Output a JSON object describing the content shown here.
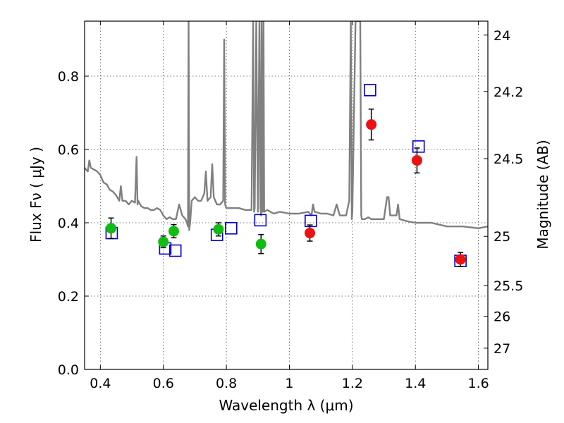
{
  "chart_data": {
    "type": "scatter",
    "title": "",
    "xlabel": "Wavelength  λ (μm)",
    "ylabel": "Flux  Fν  ( μJy )",
    "y2label": "Magnitude (AB)",
    "xlim": [
      0.35,
      1.63
    ],
    "ylim": [
      0.0,
      0.95
    ],
    "xticks": [
      0.4,
      0.6,
      0.8,
      1.0,
      1.2,
      1.4,
      1.6
    ],
    "xtick_labels": [
      "0.4",
      "0.6",
      "0.8",
      "1",
      "1.2",
      "1.4",
      "1.6"
    ],
    "yticks": [
      0.0,
      0.2,
      0.4,
      0.6,
      0.8
    ],
    "ytick_labels": [
      "0.0",
      "0.2",
      "0.4",
      "0.6",
      "0.8"
    ],
    "y2_ticks": [
      {
        "label": "24",
        "flux": 0.912
      },
      {
        "label": "24.2",
        "flux": 0.758
      },
      {
        "label": "24.5",
        "flux": 0.575
      },
      {
        "label": "25",
        "flux": 0.363
      },
      {
        "label": "25.5",
        "flux": 0.229
      },
      {
        "label": "26",
        "flux": 0.145
      },
      {
        "label": "27",
        "flux": 0.058
      }
    ],
    "grid": true,
    "series": [
      {
        "style": "line",
        "color": "#808080",
        "x": [
          0.35,
          0.36,
          0.365,
          0.37,
          0.38,
          0.39,
          0.4,
          0.41,
          0.42,
          0.43,
          0.44,
          0.45,
          0.46,
          0.465,
          0.47,
          0.48,
          0.49,
          0.5,
          0.51,
          0.515,
          0.518,
          0.52,
          0.53,
          0.54,
          0.55,
          0.56,
          0.57,
          0.58,
          0.59,
          0.6,
          0.61,
          0.62,
          0.63,
          0.64,
          0.65,
          0.66,
          0.67,
          0.675,
          0.678,
          0.68,
          0.682,
          0.685,
          0.69,
          0.7,
          0.71,
          0.72,
          0.73,
          0.735,
          0.74,
          0.75,
          0.755,
          0.76,
          0.77,
          0.78,
          0.79,
          0.793,
          0.796,
          0.8,
          0.82,
          0.84,
          0.86,
          0.88,
          0.885,
          0.888,
          0.89,
          0.895,
          0.9,
          0.905,
          0.908,
          0.91,
          0.912,
          0.915,
          0.918,
          0.92,
          0.93,
          0.95,
          0.97,
          1.0,
          1.03,
          1.06,
          1.07,
          1.075,
          1.08,
          1.1,
          1.12,
          1.14,
          1.15,
          1.16,
          1.18,
          1.19,
          1.195,
          1.198,
          1.2,
          1.21,
          1.22,
          1.225,
          1.228,
          1.23,
          1.24,
          1.25,
          1.26,
          1.28,
          1.3,
          1.31,
          1.315,
          1.32,
          1.33,
          1.34,
          1.345,
          1.35,
          1.37,
          1.4,
          1.45,
          1.5,
          1.55,
          1.6,
          1.63
        ],
        "y": [
          0.55,
          0.54,
          0.57,
          0.55,
          0.545,
          0.54,
          0.53,
          0.51,
          0.505,
          0.49,
          0.485,
          0.475,
          0.46,
          0.5,
          0.46,
          0.46,
          0.45,
          0.46,
          0.455,
          0.58,
          0.45,
          0.46,
          0.445,
          0.44,
          0.44,
          0.435,
          0.435,
          0.44,
          0.435,
          0.42,
          0.41,
          0.415,
          0.41,
          0.41,
          0.45,
          0.42,
          0.41,
          0.4,
          0.39,
          0.95,
          0.38,
          0.4,
          0.46,
          0.47,
          0.46,
          0.46,
          0.48,
          0.54,
          0.46,
          0.47,
          0.56,
          0.47,
          0.45,
          0.45,
          0.46,
          0.9,
          0.45,
          0.44,
          0.44,
          0.44,
          0.435,
          0.435,
          0.95,
          0.43,
          0.44,
          0.95,
          0.43,
          0.95,
          0.44,
          0.42,
          0.95,
          0.43,
          0.95,
          0.43,
          0.435,
          0.425,
          0.43,
          0.425,
          0.425,
          0.43,
          0.42,
          0.45,
          0.43,
          0.425,
          0.425,
          0.42,
          0.45,
          0.42,
          0.42,
          0.46,
          0.95,
          0.41,
          0.43,
          0.95,
          0.95,
          0.95,
          0.42,
          0.41,
          0.41,
          0.415,
          0.41,
          0.41,
          0.41,
          0.47,
          0.47,
          0.42,
          0.42,
          0.42,
          0.45,
          0.41,
          0.405,
          0.4,
          0.4,
          0.39,
          0.39,
          0.385,
          0.39
        ]
      },
      {
        "style": "open-square",
        "color": "#0000cc",
        "x": [
          0.436,
          0.606,
          0.638,
          0.77,
          0.815,
          0.908,
          1.068,
          1.256,
          1.41,
          1.543
        ],
        "y": [
          0.372,
          0.33,
          0.324,
          0.367,
          0.385,
          0.407,
          0.405,
          0.762,
          0.608,
          0.296
        ]
      },
      {
        "style": "filled-circle",
        "color": "#11bb11",
        "x": [
          0.434,
          0.6,
          0.633,
          0.775,
          0.91
        ],
        "y": [
          0.385,
          0.348,
          0.377,
          0.382,
          0.342
        ],
        "yerr": [
          0.028,
          0.016,
          0.018,
          0.018,
          0.026
        ]
      },
      {
        "style": "filled-circle",
        "color": "#ee1111",
        "x": [
          1.065,
          1.26,
          1.405,
          1.543
        ],
        "y": [
          0.372,
          0.668,
          0.57,
          0.3
        ],
        "yerr": [
          0.022,
          0.042,
          0.034,
          0.019
        ]
      }
    ]
  }
}
